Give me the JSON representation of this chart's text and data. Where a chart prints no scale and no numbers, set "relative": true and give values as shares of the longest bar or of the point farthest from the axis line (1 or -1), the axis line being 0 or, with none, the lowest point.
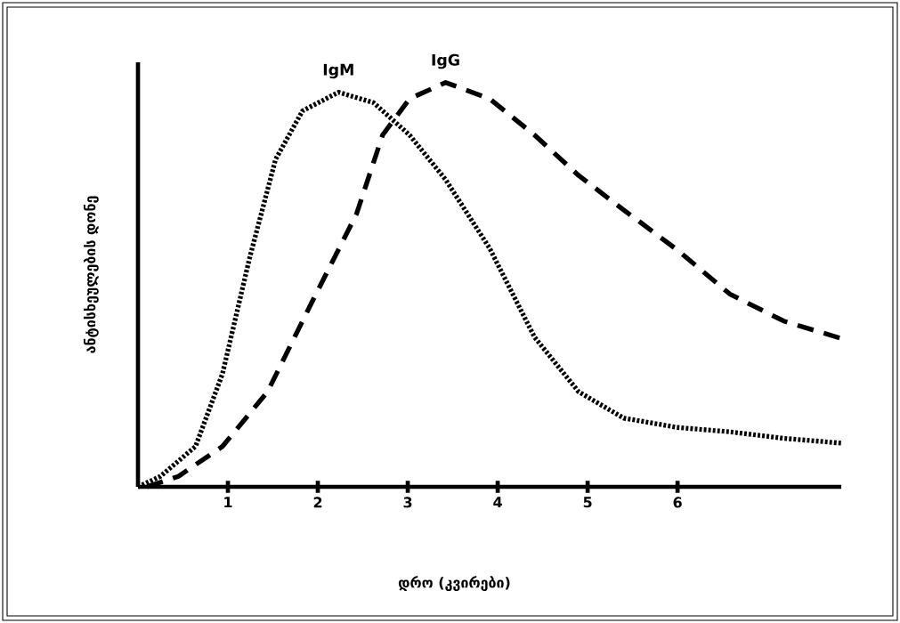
{
  "chart_data": {
    "type": "line",
    "relative": true,
    "xlabel": "დრო (კვირები)",
    "ylabel": "ანტისხეულების დონე",
    "xlim": [
      0,
      7.82
    ],
    "xticks": [
      1,
      2,
      3,
      4,
      5,
      6
    ],
    "grid": false,
    "legend": false,
    "marker": "none",
    "series": [
      {
        "name": "IgM",
        "color": "#000000",
        "line_style": "dotted",
        "x": [
          0,
          0.25,
          0.64,
          0.94,
          1.24,
          1.53,
          1.83,
          2.23,
          2.62,
          3.02,
          3.42,
          3.91,
          4.41,
          4.9,
          5.4,
          5.99,
          6.58,
          7.18,
          7.82
        ],
        "values": [
          0,
          0.026,
          0.1,
          0.28,
          0.565,
          0.81,
          0.93,
          0.976,
          0.95,
          0.87,
          0.76,
          0.59,
          0.37,
          0.235,
          0.17,
          0.147,
          0.136,
          0.12,
          0.108
        ]
      },
      {
        "name": "IgG",
        "color": "#000000",
        "line_style": "dashed",
        "x": [
          0.1,
          0.45,
          0.94,
          1.44,
          1.93,
          2.43,
          2.72,
          3.02,
          3.42,
          3.91,
          4.41,
          4.9,
          5.4,
          5.99,
          6.58,
          7.18,
          7.82
        ],
        "values": [
          0,
          0.026,
          0.1,
          0.235,
          0.455,
          0.675,
          0.87,
          0.96,
          1.0,
          0.96,
          0.87,
          0.77,
          0.685,
          0.587,
          0.477,
          0.41,
          0.367
        ]
      }
    ]
  }
}
